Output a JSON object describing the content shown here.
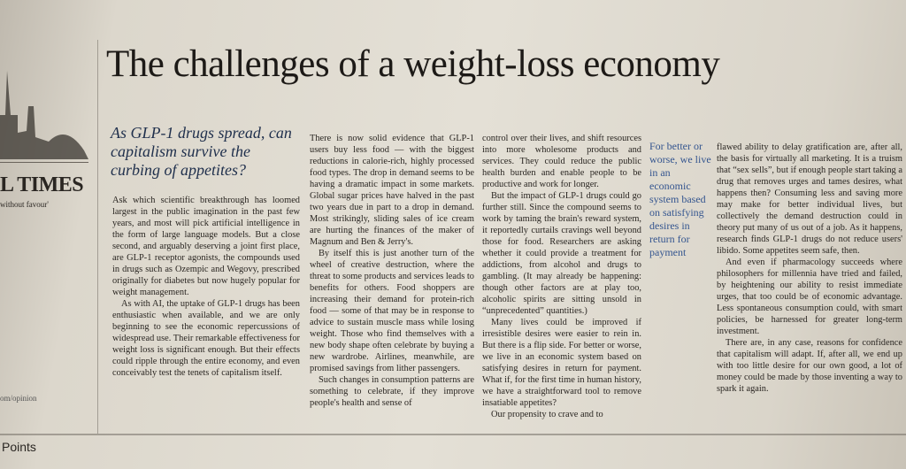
{
  "masthead": {
    "name": "L TIMES",
    "motto": "without favour'",
    "url": "om/opinion",
    "section": "Points"
  },
  "article": {
    "title": "The challenges of a weight-loss economy",
    "standfirst": "As GLP-1 drugs spread, can capitalism survive the curbing of appetites?",
    "pull_quote": "For better or worse, we live in an economic system based on satisfying desires in return for payment",
    "columns": [
      [
        "Ask which scientific breakthrough has loomed largest in the public imagination in the past few years, and most will pick artificial intelligence in the form of large language models. But a close second, and arguably deserving a joint first place, are GLP-1 receptor agonists, the compounds used in drugs such as Ozempic and Wegovy, prescribed originally for diabetes but now hugely popular for weight management.",
        "As with AI, the uptake of GLP-1 drugs has been enthusiastic when available, and we are only beginning to see the economic repercussions of widespread use. Their remarkable effectiveness for weight loss is significant enough. But their effects could ripple through the entire economy, and even conceivably test the tenets of capitalism itself."
      ],
      [
        "There is now solid evidence that GLP-1 users buy less food — with the biggest reductions in calorie-rich, highly processed food types. The drop in demand seems to be having a dramatic impact in some markets. Global sugar prices have halved in the past two years due in part to a drop in demand. Most strikingly, sliding sales of ice cream are hurting the finances of the maker of Magnum and Ben & Jerry's.",
        "By itself this is just another turn of the wheel of creative destruction, where the threat to some products and services leads to benefits for others. Food shoppers are increasing their demand for protein-rich food — some of that may be in response to advice to sustain muscle mass while losing weight. Those who find themselves with a new body shape often celebrate by buying a new wardrobe. Airlines, meanwhile, are promised savings from lither passengers.",
        "Such changes in consumption patterns are something to celebrate, if they improve people's health and sense of"
      ],
      [
        "control over their lives, and shift resources into more wholesome products and services. They could reduce the public health burden and enable people to be productive and work for longer.",
        "But the impact of GLP-1 drugs could go further still. Since the compound seems to work by taming the brain's reward system, it reportedly curtails cravings well beyond those for food. Researchers are asking whether it could provide a treatment for addictions, from alcohol and drugs to gambling. (It may already be happening: though other factors are at play too, alcoholic spirits are sitting unsold in “unprecedented” quantities.)",
        "Many lives could be improved if irresistible desires were easier to rein in. But there is a flip side. For better or worse, we live in an economic system based on satisfying desires in return for payment. What if, for the first time in human history, we have a straightforward tool to remove insatiable appetites?",
        "Our propensity to crave and to"
      ],
      [
        "flawed ability to delay gratification are, after all, the basis for virtually all marketing. It is a truism that “sex sells”, but if enough people start taking a drug that removes urges and tames desires, what happens then? Consuming less and saving more may make for better individual lives, but collectively the demand destruction could in theory put many of us out of a job. As it happens, research finds GLP-1 drugs do not reduce users' libido. Some appetites seem safe, then.",
        "And even if pharmacology succeeds where philosophers for millennia have tried and failed, by heightening our ability to resist immediate urges, that too could be of economic advantage. Less spontaneous consumption could, with smart policies, be harnessed for greater long-term investment.",
        "There are, in any case, reasons for confidence that capitalism will adapt. If, after all, we end up with too little desire for our own good, a lot of money could be made by those inventing a way to spark it again."
      ]
    ]
  }
}
